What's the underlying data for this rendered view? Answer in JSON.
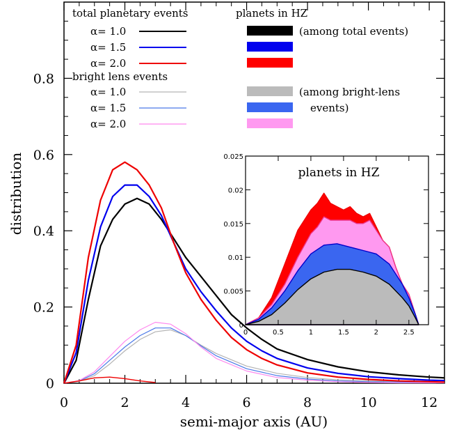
{
  "chart_data": [
    {
      "type": "line",
      "title": "",
      "xlabel": "semi-major axis (AU)",
      "ylabel": "distribution",
      "xlim": [
        0,
        12.5
      ],
      "ylim": [
        0,
        1.0
      ],
      "x_ticks": [
        "0",
        "2",
        "4",
        "6",
        "8",
        "10",
        "12"
      ],
      "y_ticks": [
        "0",
        "0.2",
        "0.4",
        "0.6",
        "0.8"
      ],
      "grid": false,
      "legend": {
        "total_header": "total planetary events",
        "bright_header": "bright lens events",
        "hz_header": "planets in HZ",
        "hz_note_total": "(among total events)",
        "hz_note_bright_1": "(among bright-lens",
        "hz_note_bright_2": "events)",
        "alpha_labels": [
          "α= 1.0",
          "α= 1.5",
          "α= 2.0"
        ]
      },
      "colors": {
        "total": [
          "#000000",
          "#0000ee",
          "#ee0000"
        ],
        "bright": [
          "#b4b4b4",
          "#4a78e8",
          "#ff88ee"
        ],
        "hz_total_swatch": [
          "#000000",
          "#0000ee",
          "#ff0000"
        ],
        "hz_bright_swatch": [
          "#bbbbbb",
          "#3a66f0",
          "#ff99f0"
        ]
      },
      "series": [
        {
          "group": "total",
          "name": "α= 1.0",
          "x": [
            0,
            0.4,
            0.8,
            1.2,
            1.6,
            2.0,
            2.4,
            2.8,
            3.2,
            3.6,
            4.0,
            4.5,
            5.0,
            5.5,
            6.0,
            6.5,
            7.0,
            8.0,
            9.0,
            10.0,
            11.0,
            12.0,
            12.5
          ],
          "values": [
            0,
            0.06,
            0.22,
            0.36,
            0.43,
            0.47,
            0.485,
            0.47,
            0.43,
            0.38,
            0.33,
            0.28,
            0.23,
            0.18,
            0.145,
            0.115,
            0.09,
            0.062,
            0.043,
            0.03,
            0.022,
            0.016,
            0.014
          ]
        },
        {
          "group": "total",
          "name": "α= 1.5",
          "x": [
            0,
            0.4,
            0.8,
            1.2,
            1.6,
            2.0,
            2.4,
            2.8,
            3.2,
            3.6,
            4.0,
            4.5,
            5.0,
            5.5,
            6.0,
            6.5,
            7.0,
            8.0,
            9.0,
            10.0,
            11.0,
            12.0,
            12.5
          ],
          "values": [
            0,
            0.08,
            0.27,
            0.41,
            0.49,
            0.52,
            0.52,
            0.49,
            0.44,
            0.37,
            0.3,
            0.24,
            0.19,
            0.145,
            0.11,
            0.085,
            0.065,
            0.04,
            0.026,
            0.017,
            0.012,
            0.008,
            0.007
          ]
        },
        {
          "group": "total",
          "name": "α= 2.0",
          "x": [
            0,
            0.4,
            0.8,
            1.2,
            1.6,
            2.0,
            2.4,
            2.8,
            3.2,
            3.6,
            4.0,
            4.5,
            5.0,
            5.5,
            6.0,
            6.5,
            7.0,
            8.0,
            9.0,
            10.0,
            11.0,
            12.0,
            12.5
          ],
          "values": [
            0,
            0.1,
            0.33,
            0.48,
            0.56,
            0.58,
            0.56,
            0.52,
            0.46,
            0.37,
            0.29,
            0.22,
            0.165,
            0.12,
            0.088,
            0.065,
            0.048,
            0.027,
            0.016,
            0.01,
            0.006,
            0.004,
            0.003
          ]
        },
        {
          "group": "bright",
          "name": "α= 1.0",
          "x": [
            0,
            0.5,
            1.0,
            1.5,
            2.0,
            2.5,
            3.0,
            3.5,
            4.0,
            4.5,
            5.0,
            6.0,
            7.0,
            8.0,
            9.0,
            10.0,
            11.0,
            12.0,
            12.5
          ],
          "values": [
            0,
            0.005,
            0.02,
            0.05,
            0.085,
            0.115,
            0.135,
            0.14,
            0.125,
            0.1,
            0.078,
            0.045,
            0.026,
            0.015,
            0.009,
            0.006,
            0.004,
            0.003,
            0.002
          ]
        },
        {
          "group": "bright",
          "name": "α= 1.5",
          "x": [
            0,
            0.5,
            1.0,
            1.5,
            2.0,
            2.5,
            3.0,
            3.5,
            4.0,
            4.5,
            5.0,
            6.0,
            7.0,
            8.0,
            9.0,
            10.0,
            11.0,
            12.0,
            12.5
          ],
          "values": [
            0,
            0.006,
            0.025,
            0.06,
            0.095,
            0.125,
            0.145,
            0.145,
            0.125,
            0.098,
            0.072,
            0.038,
            0.02,
            0.011,
            0.006,
            0.004,
            0.003,
            0.002,
            0.001
          ]
        },
        {
          "group": "bright",
          "name": "α= 2.0",
          "x": [
            0,
            0.5,
            1.0,
            1.5,
            2.0,
            2.5,
            3.0,
            3.5,
            4.0,
            4.5,
            5.0,
            6.0,
            7.0,
            8.0,
            9.0,
            10.0,
            11.0,
            12.0,
            12.5
          ],
          "values": [
            0,
            0.007,
            0.03,
            0.07,
            0.11,
            0.14,
            0.16,
            0.155,
            0.13,
            0.095,
            0.065,
            0.032,
            0.015,
            0.008,
            0.004,
            0.002,
            0.001,
            0.001,
            0.001
          ]
        },
        {
          "group": "hz-near-axis",
          "name": "α= 2.0",
          "x": [
            0,
            0.5,
            1.0,
            1.5,
            2.0,
            2.5,
            3.0
          ],
          "values": [
            0,
            0.006,
            0.014,
            0.016,
            0.012,
            0.006,
            0.002
          ]
        }
      ]
    },
    {
      "type": "area",
      "title": "planets in HZ",
      "xlabel": "",
      "ylabel": "",
      "xlim": [
        0,
        2.8
      ],
      "ylim": [
        0,
        0.025
      ],
      "x_ticks": [
        "0",
        "0.5",
        "1",
        "1.5",
        "2",
        "2.5"
      ],
      "y_ticks": [
        "0",
        "0.005",
        "0.01",
        "0.015",
        "0.02",
        "0.025"
      ],
      "series": [
        {
          "name": "total α= 2.0",
          "x": [
            0,
            0.2,
            0.4,
            0.6,
            0.8,
            1.0,
            1.1,
            1.2,
            1.3,
            1.4,
            1.5,
            1.6,
            1.7,
            1.8,
            1.9,
            2.0,
            2.1,
            2.2,
            2.3,
            2.4,
            2.5,
            2.6,
            2.65
          ],
          "values": [
            0,
            0.001,
            0.004,
            0.009,
            0.014,
            0.017,
            0.018,
            0.0195,
            0.018,
            0.0175,
            0.017,
            0.0175,
            0.0165,
            0.016,
            0.0165,
            0.0145,
            0.0125,
            0.0115,
            0.0085,
            0.006,
            0.0045,
            0.0015,
            0
          ]
        },
        {
          "name": "bright α= 2.0",
          "x": [
            0,
            0.2,
            0.4,
            0.6,
            0.8,
            1.0,
            1.1,
            1.2,
            1.3,
            1.4,
            1.5,
            1.6,
            1.7,
            1.8,
            1.9,
            2.0,
            2.1,
            2.2,
            2.3,
            2.4,
            2.5,
            2.6,
            2.65
          ],
          "values": [
            0,
            0.001,
            0.003,
            0.006,
            0.01,
            0.0135,
            0.0145,
            0.016,
            0.0155,
            0.0155,
            0.0155,
            0.0155,
            0.015,
            0.015,
            0.0155,
            0.014,
            0.0125,
            0.0115,
            0.0085,
            0.006,
            0.0045,
            0.0015,
            0
          ]
        },
        {
          "name": "bright α= 1.5",
          "x": [
            0,
            0.2,
            0.4,
            0.6,
            0.8,
            1.0,
            1.2,
            1.4,
            1.6,
            1.8,
            2.0,
            2.2,
            2.4,
            2.5,
            2.6,
            2.65
          ],
          "values": [
            0,
            0.0008,
            0.0025,
            0.005,
            0.008,
            0.0105,
            0.0118,
            0.012,
            0.0115,
            0.011,
            0.0105,
            0.009,
            0.006,
            0.004,
            0.0015,
            0
          ]
        },
        {
          "name": "bright α= 1.0",
          "x": [
            0,
            0.2,
            0.4,
            0.6,
            0.8,
            1.0,
            1.2,
            1.4,
            1.6,
            1.8,
            2.0,
            2.2,
            2.4,
            2.5,
            2.6,
            2.65
          ],
          "values": [
            0,
            0.0005,
            0.0015,
            0.0032,
            0.0052,
            0.0068,
            0.0078,
            0.0082,
            0.0082,
            0.0078,
            0.0072,
            0.006,
            0.004,
            0.0028,
            0.001,
            0
          ]
        }
      ]
    }
  ]
}
